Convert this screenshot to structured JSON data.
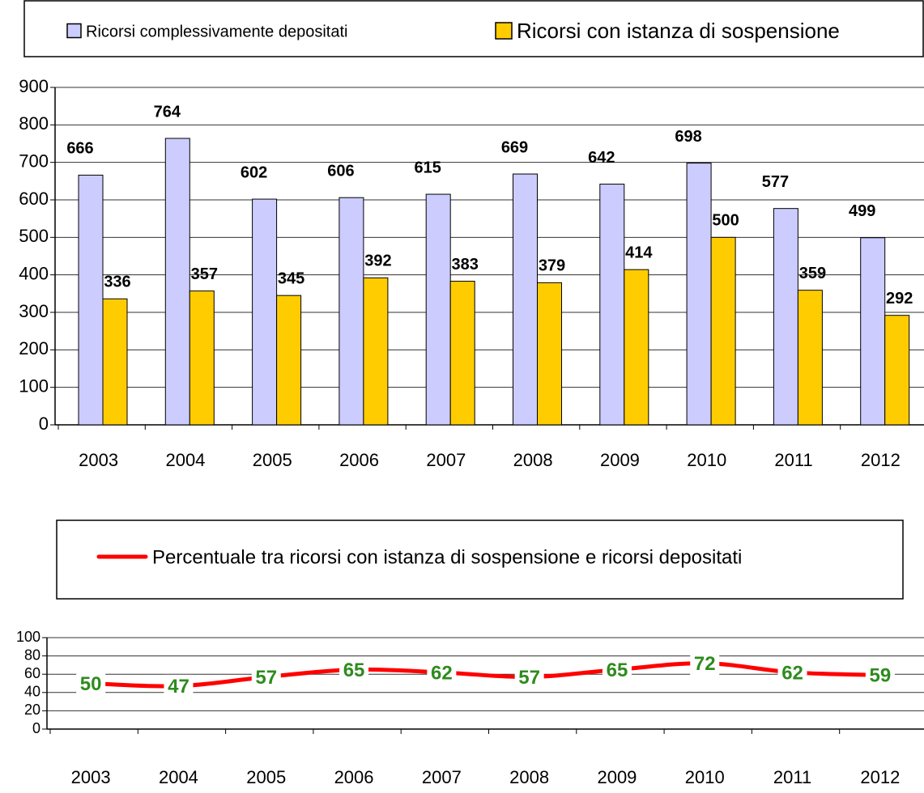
{
  "chart_data": [
    {
      "type": "bar",
      "categories": [
        "2003",
        "2004",
        "2005",
        "2006",
        "2007",
        "2008",
        "2009",
        "2010",
        "2011",
        "2012"
      ],
      "series": [
        {
          "name": "Ricorsi complessivamente depositati",
          "color": "#ccccff",
          "values": [
            666,
            764,
            602,
            606,
            615,
            669,
            642,
            698,
            577,
            499
          ]
        },
        {
          "name": "Ricorsi con istanza di sospensione",
          "color": "#ffcc00",
          "values": [
            336,
            357,
            345,
            392,
            383,
            379,
            414,
            500,
            359,
            292
          ]
        }
      ],
      "ylim": [
        0,
        900
      ],
      "yticks": [
        0,
        100,
        200,
        300,
        400,
        500,
        600,
        700,
        800,
        900
      ],
      "grid": true
    },
    {
      "type": "line",
      "categories": [
        "2003",
        "2004",
        "2005",
        "2006",
        "2007",
        "2008",
        "2009",
        "2010",
        "2011",
        "2012"
      ],
      "series": [
        {
          "name": "Percentuale tra ricorsi con istanza di sospensione e ricorsi depositati",
          "color": "#ff0000",
          "values": [
            50,
            47,
            57,
            65,
            62,
            57,
            65,
            72,
            62,
            59
          ]
        }
      ],
      "ylim": [
        0,
        100
      ],
      "yticks": [
        0,
        20,
        40,
        60,
        80,
        100
      ],
      "grid": true
    }
  ]
}
